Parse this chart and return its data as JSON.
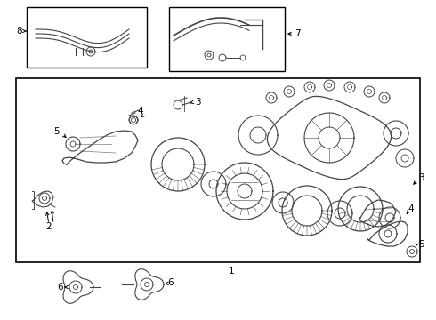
{
  "bg_color": "#ffffff",
  "border_color": "#000000",
  "line_color": "#444444",
  "label_color": "#000000",
  "fig_w": 4.9,
  "fig_h": 3.6,
  "dpi": 100
}
